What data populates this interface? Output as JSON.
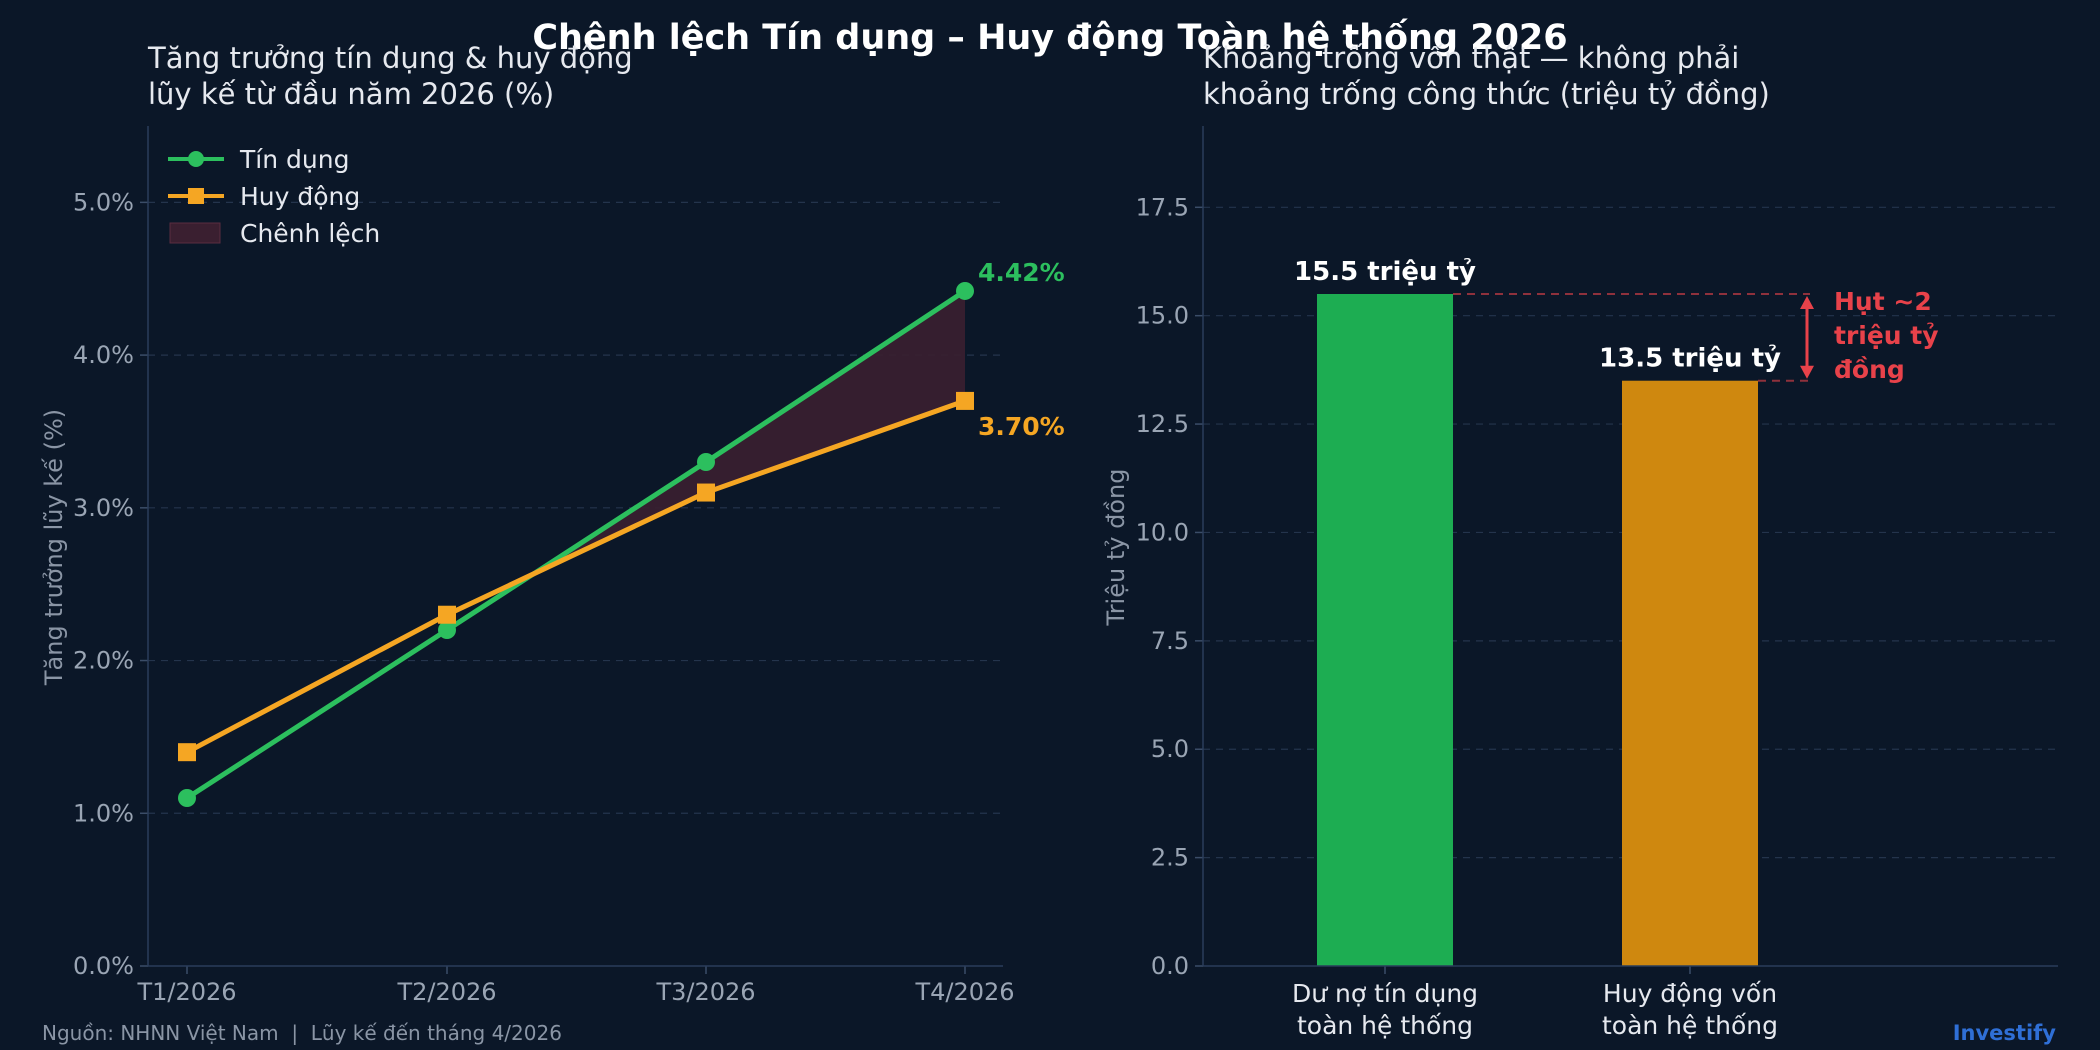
{
  "title": "Chênh lệch Tín dụng – Huy động Toàn hệ thống 2026",
  "footer": {
    "source": "Nguồn: NHNN Việt Nam  |  Lũy kế đến tháng 4/2026",
    "brand": "Investify"
  },
  "colors": {
    "background": "#0b1728",
    "credit": "#2cbf5e",
    "deposit": "#f5a623",
    "gap_fill": "#3a1f30",
    "gap_marker": "#e8424a",
    "bar_credit": "#1dad52",
    "bar_deposit": "#cf880f"
  },
  "chart_data": [
    {
      "type": "line",
      "title_lines": [
        "Tăng trưởng tín dụng & huy động",
        "lũy kế từ đầu năm 2026 (%)"
      ],
      "xlabel": "",
      "ylabel": "Tăng trưởng lũy kế (%)",
      "categories": [
        "T1/2026",
        "T2/2026",
        "T3/2026",
        "T4/2026"
      ],
      "ylim": [
        0,
        5.5
      ],
      "yticks": [
        0,
        1,
        2,
        3,
        4,
        5
      ],
      "ytick_labels": [
        "0.0%",
        "1.0%",
        "2.0%",
        "3.0%",
        "4.0%",
        "5.0%"
      ],
      "grid": true,
      "legend_position": "top-left",
      "legend": [
        "Tín dụng",
        "Huy động",
        "Chênh lệch"
      ],
      "series": [
        {
          "name": "Tín dụng",
          "values": [
            1.1,
            2.2,
            3.3,
            4.42
          ],
          "marker": "circle",
          "color": "#2cbf5e"
        },
        {
          "name": "Huy động",
          "values": [
            1.4,
            2.3,
            3.1,
            3.7
          ],
          "marker": "square",
          "color": "#f5a623"
        }
      ],
      "shaded_area": {
        "name": "Chênh lệch",
        "between": [
          "Tín dụng",
          "Huy động"
        ],
        "where": "Tín dụng > Huy động"
      },
      "annotations": [
        {
          "text": "4.42%",
          "series": "Tín dụng",
          "category": "T4/2026"
        },
        {
          "text": "3.70%",
          "series": "Huy động",
          "category": "T4/2026"
        }
      ]
    },
    {
      "type": "bar",
      "title_lines": [
        "Khoảng trống vốn thật — không phải",
        "khoảng trống công thức (triệu tỷ đồng)"
      ],
      "xlabel": "",
      "ylabel": "Triệu tỷ đồng",
      "categories": [
        [
          "Dư nợ tín dụng",
          "toàn hệ thống"
        ],
        [
          "Huy động vốn",
          "toàn hệ thống"
        ]
      ],
      "values": [
        15.5,
        13.5
      ],
      "value_labels": [
        "15.5 triệu tỷ",
        "13.5 triệu tỷ"
      ],
      "ylim": [
        0,
        19.375
      ],
      "yticks": [
        0,
        2.5,
        5,
        7.5,
        10,
        12.5,
        15,
        17.5
      ],
      "ytick_labels": [
        "0.0",
        "2.5",
        "5.0",
        "7.5",
        "10.0",
        "12.5",
        "15.0",
        "17.5"
      ],
      "grid": true,
      "gap_annotation": {
        "lines": [
          "Hụt ~2",
          "triệu tỷ",
          "đồng"
        ],
        "from": 15.5,
        "to": 13.5
      }
    }
  ]
}
